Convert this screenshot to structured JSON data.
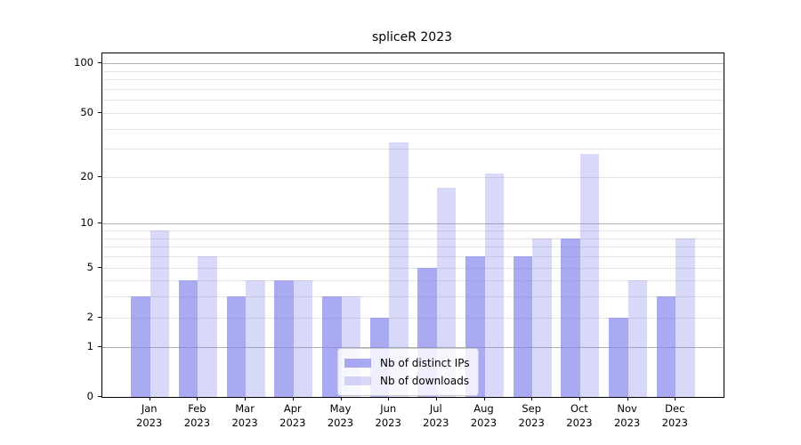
{
  "chart_data": {
    "type": "bar",
    "title": "spliceR 2023",
    "categories": [
      "Jan",
      "Feb",
      "Mar",
      "Apr",
      "May",
      "Jun",
      "Jul",
      "Aug",
      "Sep",
      "Oct",
      "Nov",
      "Dec"
    ],
    "year_label": "2023",
    "series": [
      {
        "name": "Nb of distinct IPs",
        "color": "#7e7eeb",
        "alpha": 0.66,
        "values": [
          3,
          4,
          3,
          4,
          3,
          2,
          5,
          6,
          6,
          8,
          2,
          3
        ]
      },
      {
        "name": "Nb of downloads",
        "color": "#7e7eeb",
        "alpha": 0.3,
        "values": [
          9,
          6,
          4,
          4,
          3,
          33,
          17,
          21,
          8,
          28,
          4,
          8
        ]
      }
    ],
    "xlabel": "",
    "ylabel": "",
    "yscale": "log1p",
    "ylim": [
      0,
      115
    ],
    "yticks": [
      0,
      1,
      2,
      5,
      10,
      20,
      50,
      100
    ],
    "major_gridlines": [
      1,
      10,
      100
    ],
    "minor_gridlines": [
      2,
      3,
      4,
      5,
      6,
      7,
      8,
      9,
      20,
      30,
      40,
      50,
      60,
      70,
      80,
      90
    ],
    "grid": true,
    "legend_position": "lower center"
  },
  "colors": {
    "major_grid": "#b0b0b0",
    "minor_grid": "#e4e4e4",
    "spine": "#000000",
    "background": "#ffffff"
  }
}
